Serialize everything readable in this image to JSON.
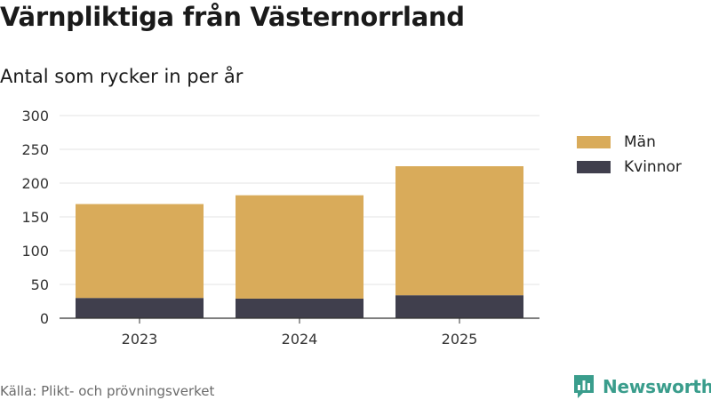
{
  "title": "Värnpliktiga från Västernorrland",
  "subtitle": "Antal som rycker in per år",
  "source": "Källa: Plikt- och prövningsverket",
  "brand": "Newsworthy",
  "colors": {
    "men": "#d9ab5a",
    "women": "#403f4d",
    "grid": "#e3e3e3",
    "axis": "#333333",
    "brand": "#3a9d8c"
  },
  "chart_data": {
    "type": "bar",
    "stacked": true,
    "categories": [
      "2023",
      "2024",
      "2025"
    ],
    "series": [
      {
        "name": "Kvinnor",
        "values": [
          30,
          29,
          34
        ]
      },
      {
        "name": "Män",
        "values": [
          139,
          153,
          191
        ]
      }
    ],
    "ylim": [
      0,
      300
    ],
    "yticks": [
      0,
      50,
      100,
      150,
      200,
      250,
      300
    ],
    "legend": [
      {
        "name": "Män",
        "color_key": "men"
      },
      {
        "name": "Kvinnor",
        "color_key": "women"
      }
    ],
    "title": "Värnpliktiga från Västernorrland",
    "xlabel": "",
    "ylabel": ""
  }
}
